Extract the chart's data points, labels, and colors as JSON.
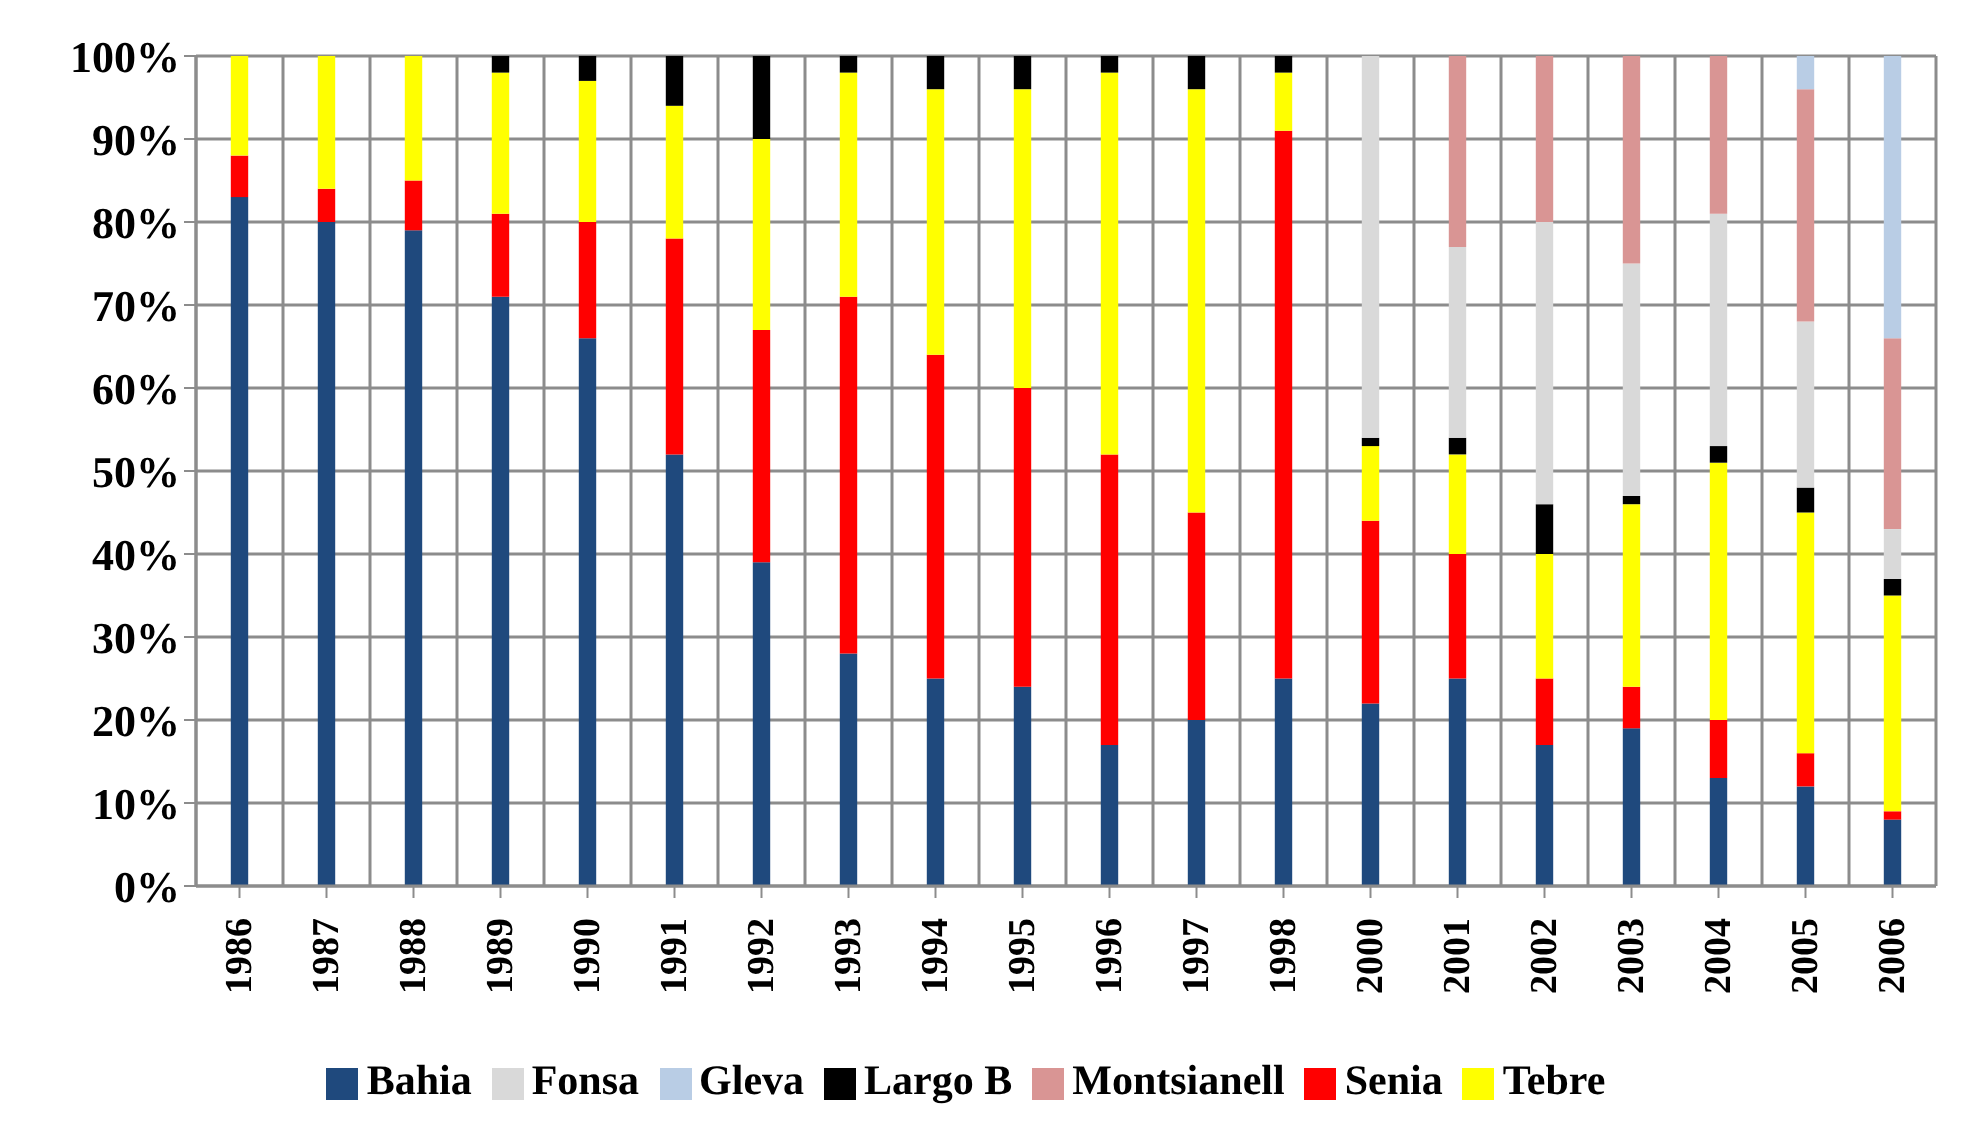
{
  "chart_data": {
    "type": "bar",
    "stacked": true,
    "categories": [
      "1986",
      "1987",
      "1988",
      "1989",
      "1990",
      "1991",
      "1992",
      "1993",
      "1994",
      "1995",
      "1996",
      "1997",
      "1998",
      "2000",
      "2001",
      "2002",
      "2003",
      "2004",
      "2005",
      "2006"
    ],
    "series": [
      {
        "name": "Bahia",
        "color": "#1f497d",
        "values": [
          83,
          80,
          79,
          71,
          66,
          52,
          39,
          28,
          25,
          24,
          17,
          20,
          25,
          22,
          25,
          17,
          19,
          13,
          12,
          8
        ]
      },
      {
        "name": "Senia",
        "color": "#ff0000",
        "values": [
          5,
          4,
          6,
          10,
          14,
          26,
          28,
          43,
          39,
          36,
          35,
          25,
          66,
          22,
          15,
          8,
          5,
          7,
          4,
          1
        ]
      },
      {
        "name": "Tebre",
        "color": "#ffff00",
        "values": [
          12,
          16,
          15,
          17,
          17,
          16,
          23,
          27,
          32,
          36,
          46,
          51,
          7,
          9,
          12,
          15,
          22,
          31,
          29,
          26
        ]
      },
      {
        "name": "Largo B",
        "color": "#000000",
        "values": [
          null,
          null,
          null,
          2,
          3,
          6,
          10,
          2,
          4,
          4,
          2,
          4,
          2,
          1,
          2,
          6,
          1,
          2,
          3,
          2
        ]
      },
      {
        "name": "Fonsa",
        "color": "#d9d9d9",
        "values": [
          null,
          null,
          null,
          null,
          null,
          null,
          null,
          null,
          null,
          null,
          null,
          null,
          null,
          46,
          23,
          34,
          28,
          28,
          20,
          6
        ]
      },
      {
        "name": "Montsianell",
        "color": "#d99594",
        "values": [
          null,
          null,
          null,
          null,
          null,
          null,
          null,
          null,
          null,
          null,
          null,
          null,
          null,
          null,
          23,
          20,
          25,
          19,
          28,
          23
        ]
      },
      {
        "name": "Gleva",
        "color": "#b9cde5",
        "values": [
          null,
          null,
          null,
          null,
          null,
          null,
          null,
          null,
          null,
          null,
          null,
          null,
          null,
          null,
          null,
          null,
          null,
          null,
          4,
          34
        ]
      }
    ],
    "ylim": [
      0,
      100
    ],
    "yticks": [
      {
        "value": 0,
        "label": "0%"
      },
      {
        "value": 10,
        "label": "10%"
      },
      {
        "value": 20,
        "label": "20%"
      },
      {
        "value": 30,
        "label": "30%"
      },
      {
        "value": 40,
        "label": "40%"
      },
      {
        "value": 50,
        "label": "50%"
      },
      {
        "value": 60,
        "label": "60%"
      },
      {
        "value": 70,
        "label": "70%"
      },
      {
        "value": 80,
        "label": "80%"
      },
      {
        "value": 90,
        "label": "90%"
      },
      {
        "value": 100,
        "label": "100%"
      }
    ],
    "grid": true,
    "legend": "bottom"
  }
}
